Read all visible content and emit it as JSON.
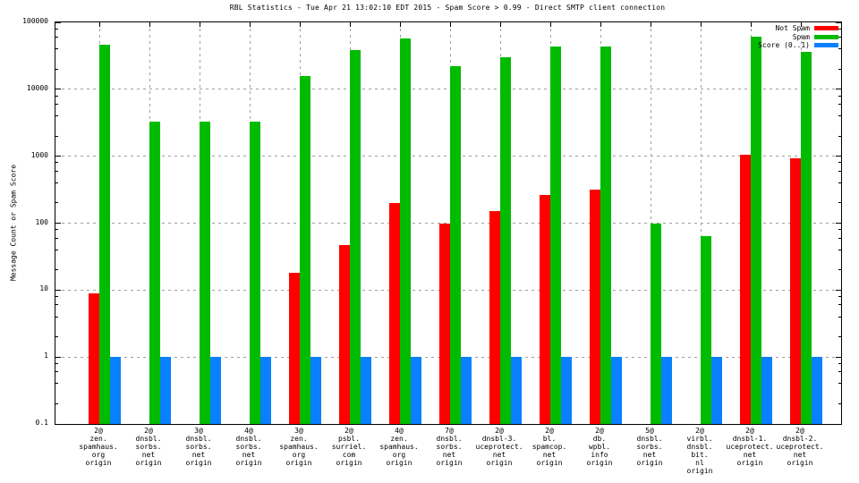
{
  "chart_data": {
    "type": "bar",
    "scale_y": "log",
    "title": "RBL Statistics - Tue Apr 21 13:02:10 EDT 2015 - Spam Score > 0.99 - Direct SMTP client connection",
    "ylabel": "Message Count or Spam Score",
    "ylim": [
      0.1,
      100000
    ],
    "ytick_labels": [
      "100000",
      "10000",
      "1000",
      "100",
      "10",
      "1",
      "0.1"
    ],
    "grid": true,
    "legend_position": "top-right",
    "categories": [
      [
        "2@",
        "zen.",
        "spamhaus.",
        "org",
        "origin"
      ],
      [
        "2@",
        "dnsbl.",
        "sorbs.",
        "net",
        "origin"
      ],
      [
        "3@",
        "dnsbl.",
        "sorbs.",
        "net",
        "origin"
      ],
      [
        "4@",
        "dnsbl.",
        "sorbs.",
        "net",
        "origin"
      ],
      [
        "3@",
        "zen.",
        "spamhaus.",
        "org",
        "origin"
      ],
      [
        "2@",
        "psbl.",
        "surriel.",
        "com",
        "origin"
      ],
      [
        "4@",
        "zen.",
        "spamhaus.",
        "org",
        "origin"
      ],
      [
        "7@",
        "dnsbl.",
        "sorbs.",
        "net",
        "origin"
      ],
      [
        "2@",
        "dnsbl-3.",
        "uceprotect.",
        "net",
        "origin"
      ],
      [
        "2@",
        "bl.",
        "spamcop.",
        "net",
        "origin"
      ],
      [
        "2@",
        "db.",
        "wpbl.",
        "info",
        "origin"
      ],
      [
        "5@",
        "dnsbl.",
        "sorbs.",
        "net",
        "origin"
      ],
      [
        "2@",
        "virbl.",
        "dnsbl.",
        "bit.",
        "nl",
        "origin"
      ],
      [
        "2@",
        "dnsbl-1.",
        "uceprotect.",
        "net",
        "origin"
      ],
      [
        "2@",
        "dnsbl-2.",
        "uceprotect.",
        "net",
        "origin"
      ]
    ],
    "series": [
      {
        "name": "Not Spam",
        "color": "#ff0000",
        "values": [
          9,
          null,
          null,
          null,
          18,
          47,
          200,
          100,
          150,
          265,
          320,
          null,
          null,
          1050,
          940
        ]
      },
      {
        "name": "Spam",
        "color": "#00bb00",
        "values": [
          46000,
          3300,
          3300,
          3300,
          16000,
          39000,
          58000,
          22000,
          30000,
          44000,
          44000,
          100,
          65,
          61000,
          36000
        ]
      },
      {
        "name": "Score (0..1)",
        "color": "#0880ff",
        "values": [
          1,
          1,
          1,
          1,
          1,
          1,
          1,
          1,
          1,
          1,
          1,
          1,
          1,
          1,
          1
        ]
      }
    ],
    "colors": {
      "grid": "#9e9e9e",
      "axis": "#000000",
      "background": "#ffffff"
    }
  }
}
